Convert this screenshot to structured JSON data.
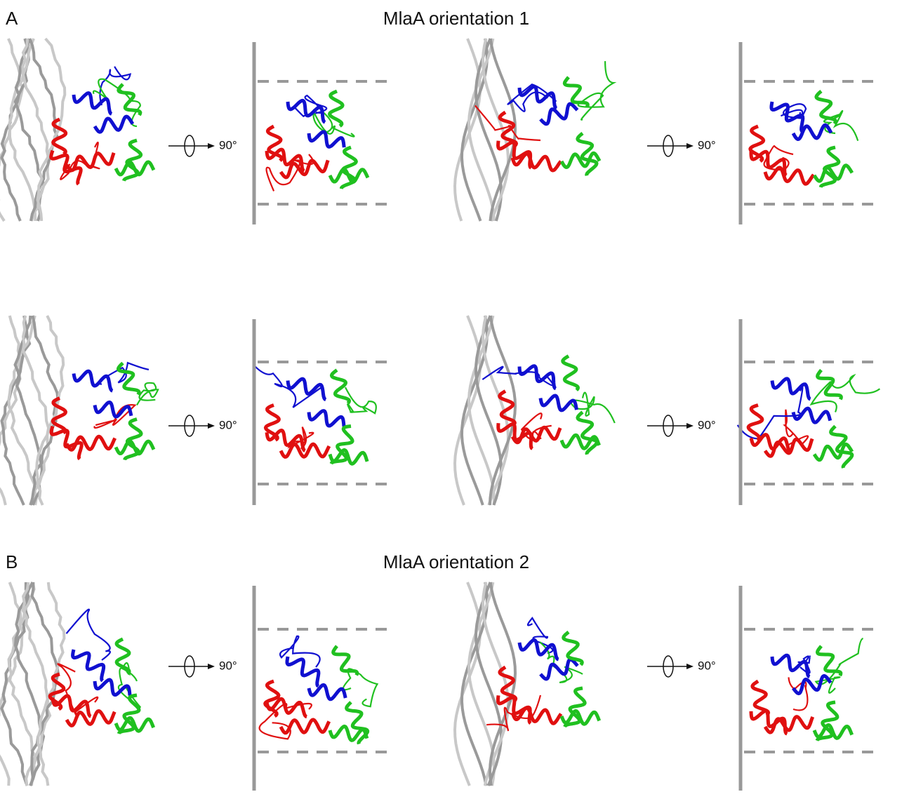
{
  "panels": [
    {
      "label": "A",
      "title": "MlaA orientation 1",
      "rows": [
        {
          "rotations": [
            "90°",
            "90°"
          ]
        },
        {
          "rotations": [
            "90°",
            "90°"
          ]
        }
      ]
    },
    {
      "label": "B",
      "title": "MlaA orientation 2",
      "rows": [
        {
          "rotations": [
            "90°",
            "90°"
          ]
        }
      ]
    }
  ]
}
